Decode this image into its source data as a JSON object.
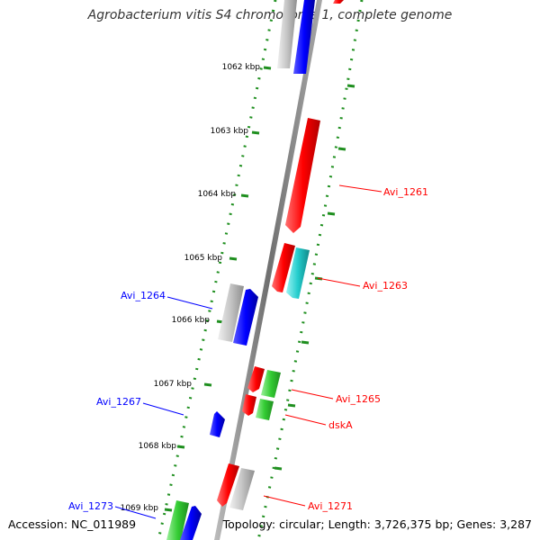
{
  "title": "Agrobacterium vitis S4 chromosome 1, complete genome",
  "accession": "Accession: NC_011989",
  "topology": "Topology: circular; Length: 3,726,375 bp; Genes: 3,287",
  "scale_labels": [
    "1062 kbp",
    "1063 kbp",
    "1064 kbp",
    "1065 kbp",
    "1066 kbp",
    "1067 kbp",
    "1068 kbp",
    "1069 kbp"
  ],
  "colors": {
    "forward": "#ff0000",
    "reverse": "#0000ff",
    "grey": "#b4b4b4",
    "green": "#33cc33",
    "cyan": "#22cccc",
    "backbone": "#808080",
    "tick": "#228b22"
  },
  "genes": [
    {
      "name": "Avi_1261",
      "color": "red",
      "strand": "forward"
    },
    {
      "name": "Avi_1263",
      "color": "red",
      "strand": "forward"
    },
    {
      "name": "Avi_1264",
      "color": "blue",
      "strand": "reverse"
    },
    {
      "name": "Avi_1265",
      "color": "red",
      "strand": "forward"
    },
    {
      "name": "dskA",
      "color": "red",
      "strand": "forward"
    },
    {
      "name": "Avi_1267",
      "color": "blue",
      "strand": "reverse"
    },
    {
      "name": "Avi_1271",
      "color": "red",
      "strand": "forward"
    },
    {
      "name": "Avi_1273",
      "color": "blue",
      "strand": "reverse"
    }
  ]
}
